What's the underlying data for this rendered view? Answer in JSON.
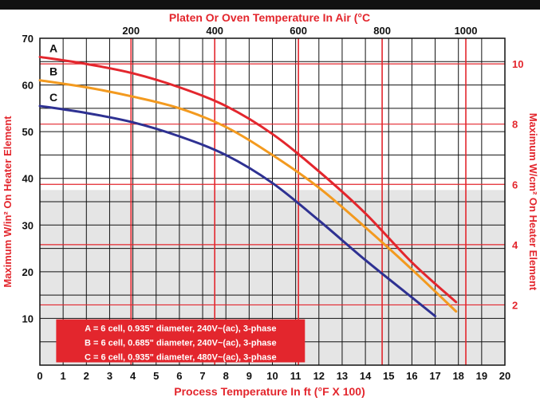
{
  "chart_data": {
    "type": "line",
    "title": "Platen Or Oven Temperature In Air (°C",
    "xlabel": "Process Temperature In ft (°F X 100)",
    "ylabel_left": "Maximum W/in² On Heater Element",
    "ylabel_right": "Maximum W/cm² On Heater Element",
    "xlim": [
      0,
      20
    ],
    "ylim": [
      0,
      70
    ],
    "x_ticks": [
      "0",
      "1",
      "2",
      "3",
      "4",
      "5",
      "6",
      "7",
      "8",
      "9",
      "10",
      "11",
      "12",
      "13",
      "14",
      "15",
      "16",
      "17",
      "18",
      "19",
      "20"
    ],
    "y_ticks": [
      "10",
      "20",
      "30",
      "40",
      "50",
      "60",
      "70"
    ],
    "top_ticks": [
      {
        "c": 200,
        "label": "200"
      },
      {
        "c": 400,
        "label": "400"
      },
      {
        "c": 600,
        "label": "600"
      },
      {
        "c": 800,
        "label": "800"
      },
      {
        "c": 1000,
        "label": "1000"
      }
    ],
    "right_ticks": [
      {
        "v": 2,
        "label": "2"
      },
      {
        "v": 4,
        "label": "4"
      },
      {
        "v": 6,
        "label": "6"
      },
      {
        "v": 8,
        "label": "8"
      },
      {
        "v": 10,
        "label": "10"
      }
    ],
    "shaded_below_y": 37.5,
    "series": [
      {
        "name": "A",
        "color": "#e3262d",
        "x": [
          0,
          2,
          4,
          6,
          8,
          10,
          12,
          14,
          16,
          17.9
        ],
        "y": [
          66,
          64.5,
          62.5,
          59.5,
          55.5,
          49.5,
          41.5,
          32.5,
          22,
          13.5
        ]
      },
      {
        "name": "B",
        "color": "#f39a1f",
        "x": [
          0,
          2,
          4,
          6,
          8,
          10,
          12,
          14,
          16,
          17.9
        ],
        "y": [
          61,
          59.5,
          57.5,
          55,
          51,
          45,
          38,
          29.5,
          20.5,
          11.5
        ]
      },
      {
        "name": "C",
        "color": "#2e3192",
        "x": [
          0,
          2,
          4,
          6,
          8,
          10,
          12,
          14,
          16,
          17
        ],
        "y": [
          55.5,
          54,
          52,
          49,
          45,
          39,
          31,
          22.5,
          14.5,
          10.5
        ]
      }
    ],
    "legend": [
      "A = 6 cell, 0.935\" diameter, 240V~(ac), 3-phase",
      "B = 6 cell, 0.685\" diameter, 240V~(ac), 3-phase",
      "C = 6 cell, 0.935\" diameter, 480V~(ac), 3-phase"
    ],
    "legend_position": "bottom-left",
    "grid": true
  }
}
